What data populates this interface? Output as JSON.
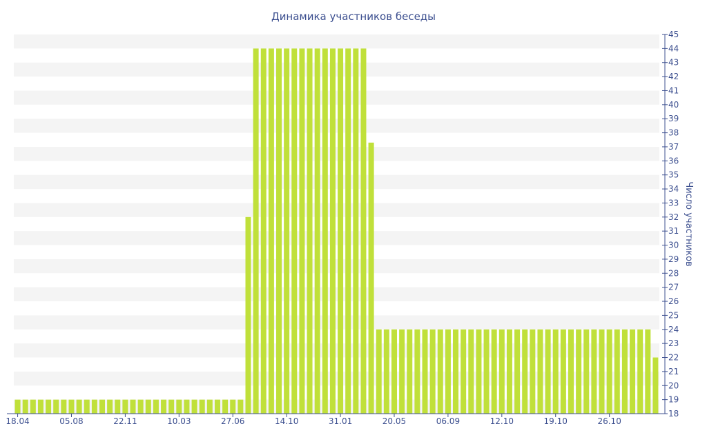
{
  "chart_data": {
    "type": "bar",
    "title": "Динамика участников беседы",
    "xlabel": "",
    "ylabel": "Число участников",
    "ylim": [
      18,
      45
    ],
    "y_axis_position": "right",
    "grid": "horizontal alternating bands",
    "legend": "none",
    "colors": {
      "bar": "#c0e03a",
      "band": "#f4f4f4",
      "text": "#3c4f8f",
      "axis": "#3c4f8f"
    },
    "x_tick_labels": [
      "18.04",
      "05.08",
      "22.11",
      "10.03",
      "27.06",
      "14.10",
      "31.01",
      "20.05",
      "06.09",
      "12.10",
      "19.10",
      "26.10"
    ],
    "x_tick_positions": [
      0,
      7,
      14,
      21,
      28,
      35,
      42,
      49,
      56,
      63,
      70,
      77
    ],
    "values": [
      19,
      19,
      19,
      19,
      19,
      19,
      19,
      19,
      19,
      19,
      19,
      19,
      19,
      19,
      19,
      19,
      19,
      19,
      19,
      19,
      19,
      19,
      19,
      19,
      19,
      19,
      19,
      19,
      19,
      19,
      32,
      44,
      44,
      44,
      44,
      44,
      44,
      44,
      44,
      44,
      44,
      44,
      44,
      44,
      44,
      44,
      37.3,
      24,
      24,
      24,
      24,
      24,
      24,
      24,
      24,
      24,
      24,
      24,
      24,
      24,
      24,
      24,
      24,
      24,
      24,
      24,
      24,
      24,
      24,
      24,
      24,
      24,
      24,
      24,
      24,
      24,
      24,
      24,
      24,
      24,
      24,
      24,
      24,
      22
    ]
  }
}
